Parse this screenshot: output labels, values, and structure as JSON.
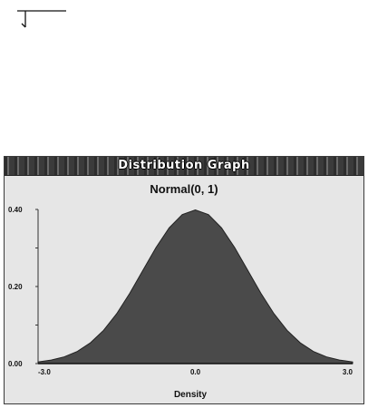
{
  "window": {
    "title": "Distribution Graph"
  },
  "colors": {
    "fill": "#4a4a4a",
    "background": "#e6e6e6",
    "titlebar": "#3d3d3d"
  },
  "chart_data": {
    "type": "area",
    "title": "Normal(0, 1)",
    "xlabel": "Density",
    "ylabel": "",
    "xlim": [
      -3.0,
      3.0
    ],
    "ylim": [
      0.0,
      0.4
    ],
    "x_ticks": [
      "-3.0",
      "0.0",
      "3.0"
    ],
    "y_ticks": [
      "0.00",
      "0.20",
      "0.40"
    ],
    "grid": false,
    "series": [
      {
        "x": [
          -3.0,
          -2.75,
          -2.5,
          -2.25,
          -2.0,
          -1.75,
          -1.5,
          -1.25,
          -1.0,
          -0.75,
          -0.5,
          -0.25,
          0.0,
          0.25,
          0.5,
          0.75,
          1.0,
          1.25,
          1.5,
          1.75,
          2.0,
          2.25,
          2.5,
          2.75,
          3.0
        ],
        "y": [
          0.0044,
          0.0091,
          0.0175,
          0.0317,
          0.054,
          0.0863,
          0.1295,
          0.1826,
          0.242,
          0.3011,
          0.3521,
          0.3867,
          0.3989,
          0.3867,
          0.3521,
          0.3011,
          0.242,
          0.1826,
          0.1295,
          0.0863,
          0.054,
          0.0317,
          0.0175,
          0.0091,
          0.0044
        ]
      }
    ]
  }
}
